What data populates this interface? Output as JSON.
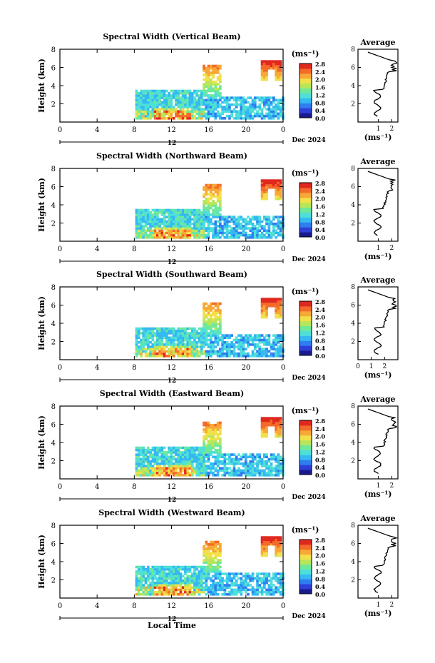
{
  "chart_data": [
    {
      "type": "heatmap",
      "title": "Spectral Width (Vertical Beam)",
      "ylabel": "Height (km)",
      "unit": "(ms⁻¹)",
      "date": "Dec 2024",
      "day_label": "12",
      "xlim": [
        0,
        24
      ],
      "ylim": [
        0,
        8
      ],
      "xticks": [
        "0",
        "4",
        "8",
        "12",
        "16",
        "20",
        "0"
      ],
      "yticks": [
        "2",
        "4",
        "6",
        "8"
      ],
      "colorbar": {
        "range": [
          0,
          2.8
        ],
        "ticks": [
          "2.8",
          "2.4",
          "2.0",
          "1.6",
          "1.2",
          "0.8",
          "0.4",
          "0.0"
        ]
      },
      "average": {
        "title": "Average",
        "xlabel": "(ms⁻¹)",
        "xticks": [
          "1",
          "2"
        ],
        "yticks": [
          "2",
          "4",
          "6",
          "8"
        ]
      }
    },
    {
      "type": "heatmap",
      "title": "Spectral Width (Northward Beam)",
      "ylabel": "Height (km)",
      "unit": "(ms⁻¹)",
      "date": "Dec 2024",
      "day_label": "12",
      "xlim": [
        0,
        24
      ],
      "ylim": [
        0,
        8
      ],
      "xticks": [
        "0",
        "4",
        "8",
        "12",
        "16",
        "20",
        "0"
      ],
      "yticks": [
        "2",
        "4",
        "6",
        "8"
      ],
      "colorbar": {
        "range": [
          0,
          2.8
        ],
        "ticks": [
          "2.8",
          "2.4",
          "2.0",
          "1.6",
          "1.2",
          "0.8",
          "0.4",
          "0.0"
        ]
      },
      "average": {
        "title": "Average",
        "xlabel": "(ms⁻¹)",
        "xticks": [
          "1",
          "2"
        ],
        "yticks": [
          "2",
          "4",
          "6",
          "8"
        ]
      }
    },
    {
      "type": "heatmap",
      "title": "Spectral Width (Southward Beam)",
      "ylabel": "Height (km)",
      "unit": "(ms⁻¹)",
      "date": "Dec 2024",
      "day_label": "12",
      "xlim": [
        0,
        24
      ],
      "ylim": [
        0,
        8
      ],
      "xticks": [
        "0",
        "4",
        "8",
        "12",
        "16",
        "20",
        "0"
      ],
      "yticks": [
        "2",
        "4",
        "6",
        "8"
      ],
      "colorbar": {
        "range": [
          0,
          2.8
        ],
        "ticks": [
          "2.8",
          "2.4",
          "2.0",
          "1.6",
          "1.2",
          "0.8",
          "0.4",
          "0.0"
        ]
      },
      "average": {
        "title": "Average",
        "xlabel": "(ms⁻¹)",
        "xticks": [
          "0",
          "1",
          "2"
        ],
        "yticks": [
          "2",
          "4",
          "6",
          "8"
        ]
      }
    },
    {
      "type": "heatmap",
      "title": "Spectral Width (Eastward Beam)",
      "ylabel": "Height (km)",
      "unit": "(ms⁻¹)",
      "date": "Dec 2024",
      "day_label": "12",
      "xlim": [
        0,
        24
      ],
      "ylim": [
        0,
        8
      ],
      "xticks": [
        "0",
        "4",
        "8",
        "12",
        "16",
        "20",
        "0"
      ],
      "yticks": [
        "2",
        "4",
        "6",
        "8"
      ],
      "colorbar": {
        "range": [
          0,
          2.8
        ],
        "ticks": [
          "2.8",
          "2.4",
          "2.0",
          "1.6",
          "1.2",
          "0.8",
          "0.4",
          "0.0"
        ]
      },
      "average": {
        "title": "Average",
        "xlabel": "(ms⁻¹)",
        "xticks": [
          "1",
          "2"
        ],
        "yticks": [
          "2",
          "4",
          "6",
          "8"
        ]
      }
    },
    {
      "type": "heatmap",
      "title": "Spectral Width (Westward Beam)",
      "ylabel": "Height (km)",
      "unit": "(ms⁻¹)",
      "date": "Dec 2024",
      "day_label": "12",
      "xlim": [
        0,
        24
      ],
      "ylim": [
        0,
        8
      ],
      "xticks": [
        "0",
        "4",
        "8",
        "12",
        "16",
        "20",
        "0"
      ],
      "yticks": [
        "2",
        "4",
        "6",
        "8"
      ],
      "colorbar": {
        "range": [
          0,
          2.8
        ],
        "ticks": [
          "2.8",
          "2.4",
          "2.0",
          "1.6",
          "1.2",
          "0.8",
          "0.4",
          "0.0"
        ]
      },
      "average": {
        "title": "Average",
        "xlabel": "(ms⁻¹)",
        "xticks": [
          "1",
          "2"
        ],
        "yticks": [
          "2",
          "4",
          "6",
          "8"
        ]
      }
    }
  ],
  "xaxis_label": "Local Time",
  "colormap": [
    "#1a1a8c",
    "#2d3fd6",
    "#2f7df0",
    "#35b9f2",
    "#4ee0d8",
    "#6fe89a",
    "#b8e65a",
    "#f2e04a",
    "#f7a836",
    "#f36a2a",
    "#e0281f"
  ]
}
